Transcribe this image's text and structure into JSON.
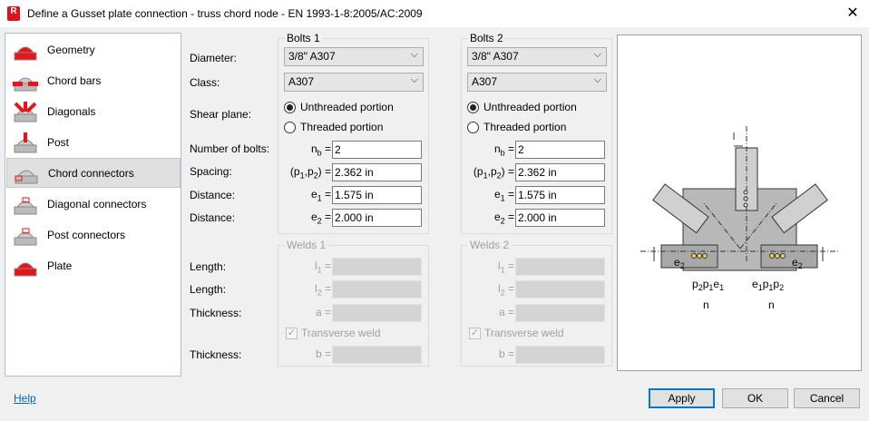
{
  "window": {
    "title": "Define a Gusset plate connection - truss chord node - EN 1993-1-8:2005/AC:2009",
    "icon_letter": "R",
    "close": "✕"
  },
  "sidebar": {
    "items": [
      {
        "label": "Geometry",
        "icon": "geometry-icon",
        "selected": false
      },
      {
        "label": "Chord bars",
        "icon": "chord-bars-icon",
        "selected": false
      },
      {
        "label": "Diagonals",
        "icon": "diagonals-icon",
        "selected": false
      },
      {
        "label": "Post",
        "icon": "post-icon",
        "selected": false
      },
      {
        "label": "Chord connectors",
        "icon": "chord-connectors-icon",
        "selected": true
      },
      {
        "label": "Diagonal connectors",
        "icon": "diagonal-connectors-icon",
        "selected": false
      },
      {
        "label": "Post connectors",
        "icon": "post-connectors-icon",
        "selected": false
      },
      {
        "label": "Plate",
        "icon": "plate-icon",
        "selected": false
      }
    ]
  },
  "labels": {
    "diameter": "Diameter:",
    "class": "Class:",
    "shear_plane": "Shear plane:",
    "num_bolts": "Number of bolts:",
    "spacing": "Spacing:",
    "distance1": "Distance:",
    "distance2": "Distance:",
    "length1": "Length:",
    "length2": "Length:",
    "thickness1": "Thickness:",
    "thickness2": "Thickness:"
  },
  "symbols": {
    "nb": "n",
    "nb_sub": "b",
    "spacing": "(p",
    "p1sub": "1",
    "spacing_mid": ",p",
    "p2sub": "2",
    "spacing_end": ")",
    "e": "e",
    "e1sub": "1",
    "e2sub": "2",
    "eq": "=",
    "l": "l",
    "l1sub": "1",
    "l2sub": "2",
    "a": "a",
    "b": "b"
  },
  "bolts": [
    {
      "title": "Bolts 1",
      "diameter": "3/8\" A307",
      "class": "A307",
      "shear_options": [
        "Unthreaded portion",
        "Threaded portion"
      ],
      "shear_selected": 0,
      "nb": "2",
      "spacing": "2.362 in",
      "e1": "1.575 in",
      "e2": "2.000 in"
    },
    {
      "title": "Bolts 2",
      "diameter": "3/8\" A307",
      "class": "A307",
      "shear_options": [
        "Unthreaded portion",
        "Threaded portion"
      ],
      "shear_selected": 0,
      "nb": "2",
      "spacing": "2.362 in",
      "e1": "1.575 in",
      "e2": "2.000 in"
    }
  ],
  "welds": [
    {
      "title": "Welds 1",
      "l1": "",
      "l2": "",
      "a": "",
      "transverse_label": "Transverse weld",
      "transverse_checked": true,
      "b": "",
      "enabled": false
    },
    {
      "title": "Welds 2",
      "l1": "",
      "l2": "",
      "a": "",
      "transverse_label": "Transverse weld",
      "transverse_checked": true,
      "b": "",
      "enabled": false
    }
  ],
  "preview": {
    "labels": {
      "p2": "p",
      "p1": "p",
      "e1": "e",
      "e2": "e",
      "n": "n",
      "s1": "1",
      "s2": "2"
    }
  },
  "buttons": {
    "help": "Help",
    "apply": "Apply",
    "ok": "OK",
    "cancel": "Cancel"
  },
  "colors": {
    "accent": "#0078d7",
    "icon_red": "#e8141b"
  }
}
